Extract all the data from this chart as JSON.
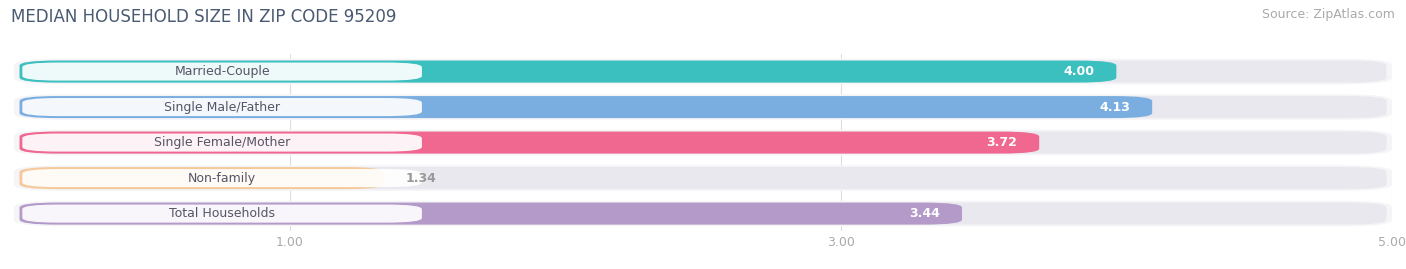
{
  "title": "MEDIAN HOUSEHOLD SIZE IN ZIP CODE 95209",
  "source": "Source: ZipAtlas.com",
  "categories": [
    "Married-Couple",
    "Single Male/Father",
    "Single Female/Mother",
    "Non-family",
    "Total Households"
  ],
  "values": [
    4.0,
    4.13,
    3.72,
    1.34,
    3.44
  ],
  "bar_colors": [
    "#3bbfbf",
    "#7baee0",
    "#f06890",
    "#f5c99a",
    "#b39ac8"
  ],
  "label_bg_colors": [
    "#3bbfbf",
    "#7baee0",
    "#f06890",
    "#f5c99a",
    "#b39ac8"
  ],
  "background_color": "#ffffff",
  "bar_bg_color": "#e8e8ee",
  "row_bg_color": "#f5f5f8",
  "xlim": [
    0,
    5.0
  ],
  "xticks": [
    1.0,
    3.0,
    5.0
  ],
  "title_color": "#4a5a72",
  "source_color": "#aaaaaa",
  "label_color": "#555566",
  "value_color_inside": "#ffffff",
  "value_color_outside": "#999999",
  "title_fontsize": 12,
  "source_fontsize": 9,
  "label_fontsize": 9,
  "value_fontsize": 9,
  "tick_fontsize": 9
}
